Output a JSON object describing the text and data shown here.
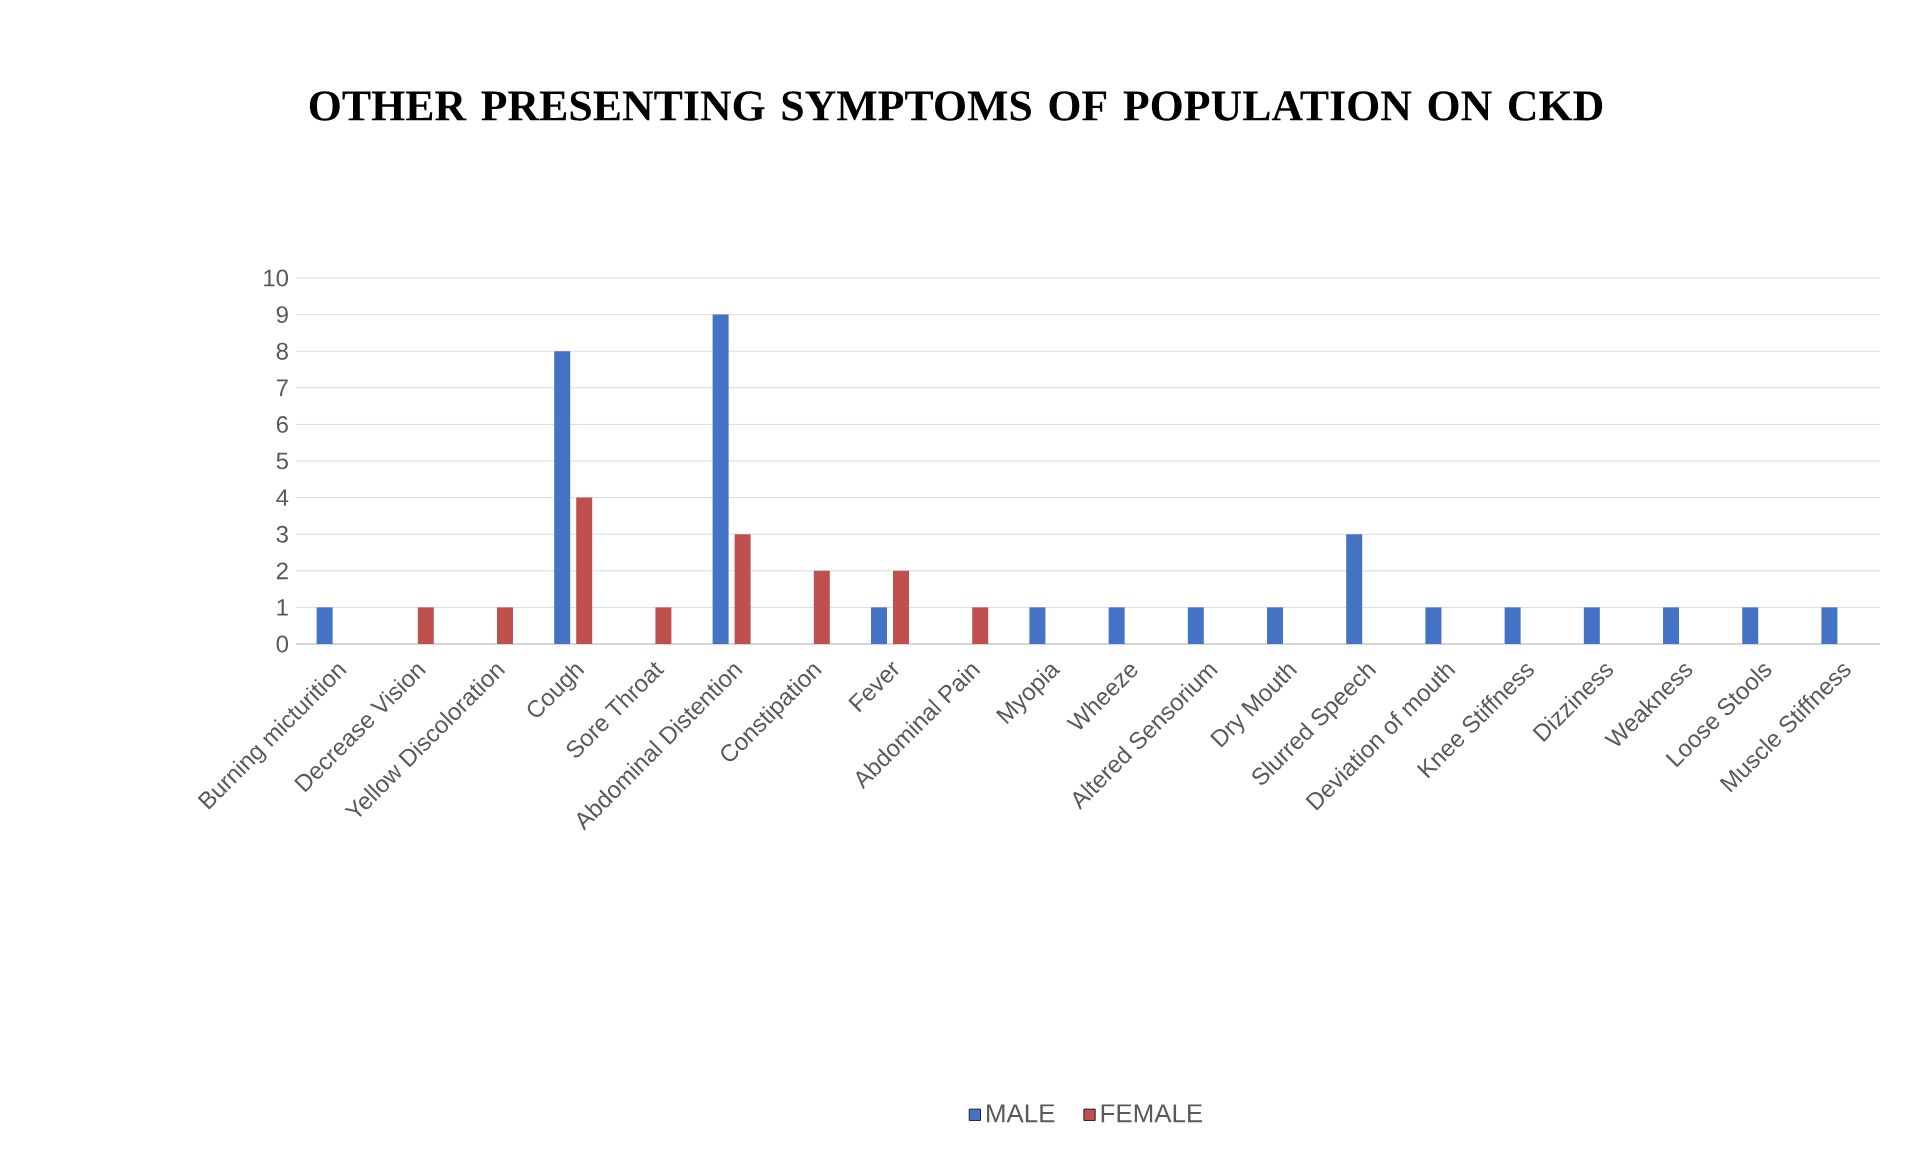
{
  "chart_data": {
    "type": "bar",
    "title": "OTHER PRESENTING SYMPTOMS OF POPULATION ON CKD",
    "categories": [
      "Burning micturition",
      "Decrease Vision",
      "Yellow Discoloration",
      "Cough",
      "Sore Throat",
      "Abdominal Distention",
      "Constipation",
      "Fever",
      "Abdominal Pain",
      "Myopia",
      "Wheeze",
      "Altered Sensorium",
      "Dry Mouth",
      "Slurred Speech",
      "Deviation of mouth",
      "Knee Stiffness",
      "Dizziness",
      "Weakness",
      "Loose Stools",
      "Muscle Stiffness"
    ],
    "series": [
      {
        "name": "MALE",
        "color": "#4472c4",
        "values": [
          1,
          0,
          0,
          8,
          0,
          9,
          0,
          1,
          0,
          1,
          1,
          1,
          1,
          3,
          1,
          1,
          1,
          1,
          1,
          1
        ]
      },
      {
        "name": "FEMALE",
        "color": "#c0504d",
        "values": [
          0,
          1,
          1,
          4,
          1,
          3,
          2,
          2,
          1,
          0,
          0,
          0,
          0,
          0,
          0,
          0,
          0,
          0,
          0,
          0
        ]
      }
    ],
    "ylim": [
      0,
      10
    ],
    "yticks": [
      0,
      1,
      2,
      3,
      4,
      5,
      6,
      7,
      8,
      9,
      10
    ],
    "grid": "y",
    "legend": "bottom"
  }
}
